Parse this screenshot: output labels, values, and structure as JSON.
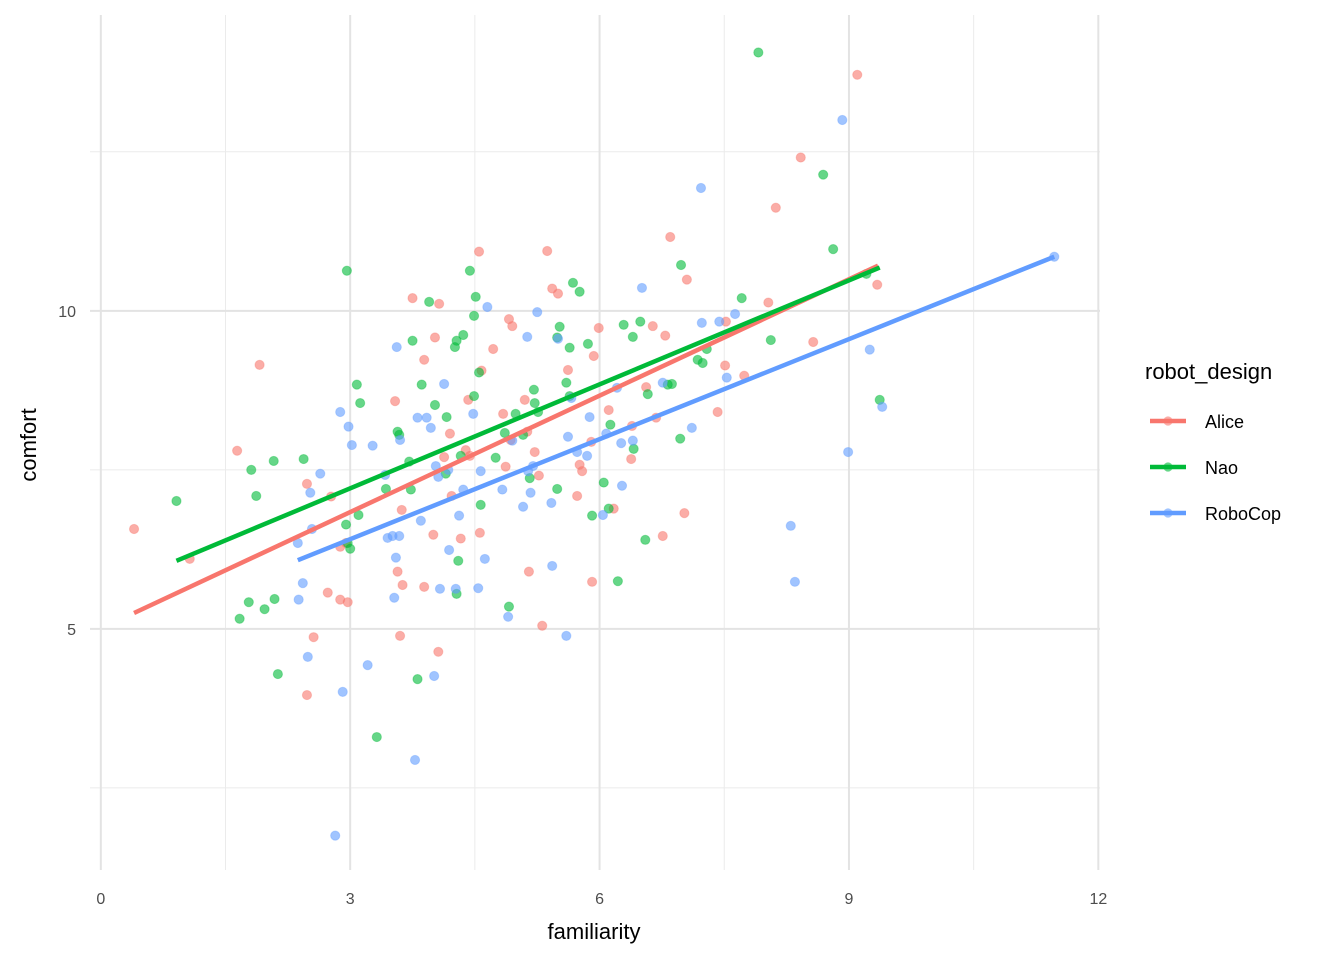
{
  "chart_data": {
    "type": "scatter",
    "title": "",
    "xlabel": "familiarity",
    "ylabel": "comfort",
    "xlim": [
      -0.13,
      12.02
    ],
    "ylim": [
      1.21,
      14.65
    ],
    "x_ticks": [
      0,
      3,
      6,
      9,
      12
    ],
    "x_tick_labels": [
      "0",
      "3",
      "6",
      "9",
      "12"
    ],
    "y_ticks": [
      5,
      10
    ],
    "y_tick_labels": [
      "5",
      "10"
    ],
    "x_minor_grid": [
      1.5,
      4.5,
      7.5,
      10.5
    ],
    "y_minor_grid": [
      2.5,
      7.5,
      12.5
    ],
    "grid": true,
    "point_alpha": 0.6,
    "legend": {
      "title": "robot_design",
      "placement": "right"
    },
    "series": [
      {
        "name": "Alice",
        "color": "#F8766D",
        "fit_line": [
          [
            0.4,
            5.25
          ],
          [
            9.35,
            10.71
          ]
        ],
        "points": [
          [
            0.4,
            6.57
          ],
          [
            1.07,
            6.1
          ],
          [
            1.64,
            7.8
          ],
          [
            1.91,
            9.15
          ],
          [
            2.48,
            7.28
          ],
          [
            2.48,
            3.96
          ],
          [
            2.56,
            4.87
          ],
          [
            2.73,
            5.57
          ],
          [
            2.77,
            7.08
          ],
          [
            2.88,
            6.29
          ],
          [
            2.88,
            5.46
          ],
          [
            2.97,
            5.42
          ],
          [
            2.95,
            6.35
          ],
          [
            3.54,
            8.58
          ],
          [
            3.57,
            5.9
          ],
          [
            3.62,
            6.87
          ],
          [
            3.6,
            4.89
          ],
          [
            3.63,
            5.69
          ],
          [
            3.75,
            10.2
          ],
          [
            3.89,
            9.23
          ],
          [
            3.89,
            5.66
          ],
          [
            4.0,
            6.48
          ],
          [
            4.02,
            9.58
          ],
          [
            4.06,
            4.64
          ],
          [
            4.07,
            10.11
          ],
          [
            4.13,
            7.7
          ],
          [
            4.2,
            8.07
          ],
          [
            4.22,
            7.09
          ],
          [
            4.33,
            6.42
          ],
          [
            4.39,
            7.81
          ],
          [
            4.42,
            8.6
          ],
          [
            4.44,
            7.72
          ],
          [
            4.55,
            10.93
          ],
          [
            4.56,
            6.51
          ],
          [
            4.58,
            9.06
          ],
          [
            4.72,
            9.4
          ],
          [
            4.84,
            8.38
          ],
          [
            4.87,
            7.55
          ],
          [
            4.91,
            9.87
          ],
          [
            4.93,
            7.97
          ],
          [
            4.95,
            9.76
          ],
          [
            5.1,
            8.6
          ],
          [
            5.13,
            8.1
          ],
          [
            5.15,
            5.9
          ],
          [
            5.22,
            7.78
          ],
          [
            5.27,
            7.41
          ],
          [
            5.31,
            5.05
          ],
          [
            5.37,
            10.94
          ],
          [
            5.43,
            10.35
          ],
          [
            5.5,
            10.27
          ],
          [
            5.62,
            9.07
          ],
          [
            5.73,
            7.09
          ],
          [
            5.76,
            7.58
          ],
          [
            5.79,
            7.48
          ],
          [
            5.9,
            7.94
          ],
          [
            5.91,
            5.74
          ],
          [
            5.93,
            9.29
          ],
          [
            5.99,
            9.73
          ],
          [
            6.11,
            8.44
          ],
          [
            6.17,
            6.89
          ],
          [
            6.38,
            7.67
          ],
          [
            6.39,
            8.19
          ],
          [
            6.56,
            8.8
          ],
          [
            6.64,
            9.76
          ],
          [
            6.68,
            8.32
          ],
          [
            6.76,
            6.46
          ],
          [
            6.79,
            9.61
          ],
          [
            6.85,
            11.16
          ],
          [
            7.02,
            6.82
          ],
          [
            7.05,
            10.49
          ],
          [
            7.42,
            8.41
          ],
          [
            7.51,
            9.14
          ],
          [
            7.74,
            8.98
          ],
          [
            8.03,
            10.13
          ],
          [
            8.12,
            11.62
          ],
          [
            8.42,
            12.41
          ],
          [
            8.57,
            9.51
          ],
          [
            9.1,
            13.71
          ],
          [
            9.34,
            10.41
          ],
          [
            7.52,
            9.83
          ]
        ]
      },
      {
        "name": "Nao",
        "color": "#00BA38",
        "fit_line": [
          [
            0.91,
            6.07
          ],
          [
            9.37,
            10.68
          ]
        ],
        "points": [
          [
            0.91,
            7.01
          ],
          [
            1.67,
            5.16
          ],
          [
            1.78,
            5.42
          ],
          [
            1.81,
            7.5
          ],
          [
            1.87,
            7.09
          ],
          [
            1.97,
            5.31
          ],
          [
            2.08,
            7.64
          ],
          [
            2.09,
            5.47
          ],
          [
            2.13,
            4.29
          ],
          [
            2.44,
            7.67
          ],
          [
            2.96,
            10.63
          ],
          [
            2.95,
            6.64
          ],
          [
            2.97,
            6.35
          ],
          [
            3.0,
            6.26
          ],
          [
            3.08,
            8.84
          ],
          [
            3.12,
            8.55
          ],
          [
            3.1,
            6.79
          ],
          [
            3.32,
            3.3
          ],
          [
            3.43,
            7.2
          ],
          [
            3.57,
            8.1
          ],
          [
            3.59,
            8.05
          ],
          [
            3.71,
            7.63
          ],
          [
            3.73,
            7.19
          ],
          [
            3.75,
            9.53
          ],
          [
            3.81,
            4.21
          ],
          [
            3.86,
            8.84
          ],
          [
            3.95,
            10.14
          ],
          [
            4.02,
            8.52
          ],
          [
            4.15,
            7.44
          ],
          [
            4.16,
            8.33
          ],
          [
            4.26,
            9.43
          ],
          [
            4.28,
            9.53
          ],
          [
            4.3,
            6.07
          ],
          [
            4.28,
            5.55
          ],
          [
            4.33,
            7.72
          ],
          [
            4.36,
            9.62
          ],
          [
            4.44,
            10.63
          ],
          [
            4.49,
            8.66
          ],
          [
            4.49,
            9.92
          ],
          [
            4.51,
            10.22
          ],
          [
            4.55,
            9.03
          ],
          [
            4.57,
            6.95
          ],
          [
            4.75,
            7.69
          ],
          [
            4.86,
            8.08
          ],
          [
            4.91,
            5.35
          ],
          [
            4.99,
            8.38
          ],
          [
            5.08,
            8.05
          ],
          [
            5.16,
            7.37
          ],
          [
            5.21,
            8.76
          ],
          [
            5.22,
            8.55
          ],
          [
            5.26,
            8.41
          ],
          [
            5.49,
            9.58
          ],
          [
            5.49,
            7.2
          ],
          [
            5.52,
            9.75
          ],
          [
            5.6,
            8.87
          ],
          [
            5.64,
            8.66
          ],
          [
            5.64,
            9.42
          ],
          [
            5.68,
            10.44
          ],
          [
            5.76,
            10.3
          ],
          [
            5.86,
            9.48
          ],
          [
            5.91,
            6.78
          ],
          [
            6.05,
            7.3
          ],
          [
            6.11,
            6.89
          ],
          [
            6.13,
            8.21
          ],
          [
            6.22,
            5.75
          ],
          [
            6.29,
            9.78
          ],
          [
            6.4,
            9.59
          ],
          [
            6.41,
            7.83
          ],
          [
            6.49,
            9.83
          ],
          [
            6.55,
            6.4
          ],
          [
            6.58,
            8.69
          ],
          [
            6.82,
            8.84
          ],
          [
            6.87,
            8.85
          ],
          [
            6.97,
            7.99
          ],
          [
            6.98,
            10.72
          ],
          [
            7.18,
            9.23
          ],
          [
            7.24,
            9.18
          ],
          [
            7.29,
            9.4
          ],
          [
            7.71,
            10.2
          ],
          [
            7.91,
            14.06
          ],
          [
            8.06,
            9.54
          ],
          [
            8.69,
            12.14
          ],
          [
            8.81,
            10.97
          ],
          [
            9.21,
            10.58
          ],
          [
            9.37,
            8.6
          ]
        ]
      },
      {
        "name": "RoboCop",
        "color": "#619CFF",
        "fit_line": [
          [
            2.37,
            6.08
          ],
          [
            11.47,
            10.85
          ]
        ],
        "points": [
          [
            2.37,
            6.35
          ],
          [
            2.38,
            5.46
          ],
          [
            2.43,
            5.72
          ],
          [
            2.49,
            4.56
          ],
          [
            2.52,
            7.14
          ],
          [
            2.54,
            6.57
          ],
          [
            2.64,
            7.44
          ],
          [
            2.82,
            1.75
          ],
          [
            2.88,
            8.41
          ],
          [
            2.91,
            4.01
          ],
          [
            2.98,
            8.18
          ],
          [
            3.02,
            7.89
          ],
          [
            3.21,
            4.43
          ],
          [
            3.27,
            7.88
          ],
          [
            3.42,
            7.42
          ],
          [
            3.45,
            6.43
          ],
          [
            3.51,
            6.46
          ],
          [
            3.53,
            5.49
          ],
          [
            3.55,
            6.12
          ],
          [
            3.56,
            9.43
          ],
          [
            3.59,
            6.46
          ],
          [
            3.6,
            7.97
          ],
          [
            3.78,
            2.94
          ],
          [
            3.81,
            8.32
          ],
          [
            3.85,
            6.7
          ],
          [
            3.92,
            8.32
          ],
          [
            3.97,
            8.16
          ],
          [
            4.01,
            4.26
          ],
          [
            4.03,
            7.56
          ],
          [
            4.06,
            7.39
          ],
          [
            4.08,
            5.63
          ],
          [
            4.13,
            8.85
          ],
          [
            4.18,
            7.5
          ],
          [
            4.19,
            6.24
          ],
          [
            4.27,
            5.63
          ],
          [
            4.31,
            6.78
          ],
          [
            4.36,
            7.19
          ],
          [
            4.48,
            8.38
          ],
          [
            4.54,
            5.64
          ],
          [
            4.57,
            7.48
          ],
          [
            4.62,
            6.1
          ],
          [
            4.65,
            10.06
          ],
          [
            4.83,
            7.19
          ],
          [
            4.9,
            5.19
          ],
          [
            4.95,
            7.96
          ],
          [
            5.08,
            6.92
          ],
          [
            5.13,
            9.59
          ],
          [
            5.14,
            7.48
          ],
          [
            5.17,
            7.14
          ],
          [
            5.2,
            7.56
          ],
          [
            5.25,
            9.98
          ],
          [
            5.42,
            6.98
          ],
          [
            5.43,
            5.99
          ],
          [
            5.5,
            9.56
          ],
          [
            5.6,
            4.89
          ],
          [
            5.62,
            8.02
          ],
          [
            5.66,
            8.63
          ],
          [
            5.73,
            7.78
          ],
          [
            5.85,
            7.72
          ],
          [
            5.88,
            8.33
          ],
          [
            6.04,
            6.79
          ],
          [
            6.08,
            8.07
          ],
          [
            6.21,
            8.79
          ],
          [
            6.26,
            7.92
          ],
          [
            6.27,
            7.25
          ],
          [
            6.4,
            7.96
          ],
          [
            6.51,
            10.36
          ],
          [
            6.76,
            8.87
          ],
          [
            7.11,
            8.16
          ],
          [
            7.22,
            11.93
          ],
          [
            7.23,
            9.81
          ],
          [
            7.44,
            9.83
          ],
          [
            7.53,
            8.95
          ],
          [
            7.63,
            9.95
          ],
          [
            8.3,
            6.62
          ],
          [
            8.35,
            5.74
          ],
          [
            8.92,
            13.0
          ],
          [
            8.99,
            7.78
          ],
          [
            9.25,
            9.39
          ],
          [
            9.4,
            8.49
          ],
          [
            11.47,
            10.85
          ]
        ]
      }
    ]
  }
}
